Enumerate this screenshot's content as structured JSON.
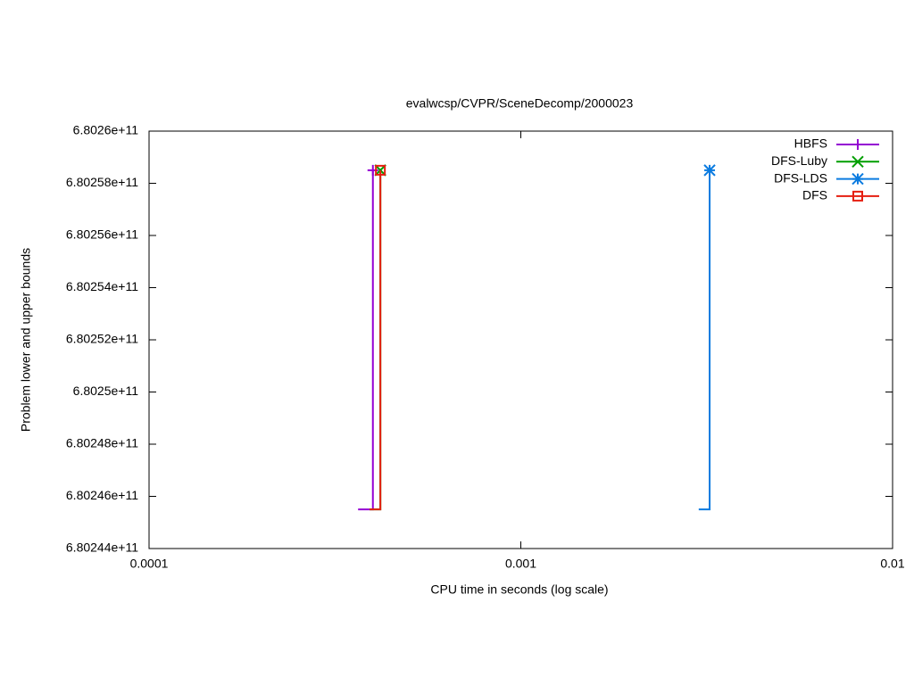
{
  "chart_data": {
    "type": "line",
    "title": "evalwcsp/CVPR/SceneDecomp/2000023",
    "x_label": "CPU time in seconds (log scale)",
    "y_label": "Problem lower and upper bounds",
    "x_scale": "log",
    "xlim": [
      0.0001,
      0.01
    ],
    "xticks": [
      0.0001,
      0.001,
      0.01
    ],
    "ylim": [
      680244000000,
      680260000000
    ],
    "yticks": [
      {
        "value": 680244000000,
        "label": "6.80244e+11"
      },
      {
        "value": 680246000000,
        "label": "6.80246e+11"
      },
      {
        "value": 680248000000,
        "label": "6.80248e+11"
      },
      {
        "value": 680250000000,
        "label": "6.8025e+11"
      },
      {
        "value": 680252000000,
        "label": "6.80252e+11"
      },
      {
        "value": 680254000000,
        "label": "6.80254e+11"
      },
      {
        "value": 680256000000,
        "label": "6.80256e+11"
      },
      {
        "value": 680258000000,
        "label": "6.80258e+11"
      },
      {
        "value": 680260000000,
        "label": "6.8026e+11"
      }
    ],
    "legend": "top-right",
    "series": [
      {
        "name": "HBFS",
        "color": "#9400d3",
        "marker": "plus",
        "x": [
          0.000365,
          0.0004,
          0.0004
        ],
        "values": [
          680245500000,
          680245500000,
          680258500000
        ]
      },
      {
        "name": "DFS-Luby",
        "color": "#009e00",
        "marker": "cross",
        "x": [
          0.000392,
          0.000419,
          0.000419
        ],
        "values": [
          680245500000,
          680245500000,
          680258500000
        ]
      },
      {
        "name": "DFS-LDS",
        "color": "#0a7be0",
        "marker": "star",
        "x": [
          0.00301,
          0.00322,
          0.00322
        ],
        "values": [
          680245500000,
          680245500000,
          680258500000
        ]
      },
      {
        "name": "DFS",
        "color": "#e51e10",
        "marker": "square",
        "x": [
          0.000392,
          0.000419,
          0.000419
        ],
        "values": [
          680245500000,
          680245500000,
          680258500000
        ]
      }
    ]
  }
}
